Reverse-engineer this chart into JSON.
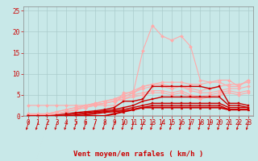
{
  "xlabel": "Vent moyen/en rafales ( km/h )",
  "bg_color": "#c8e8e8",
  "grid_color": "#aacccc",
  "lines": [
    {
      "color": "#ffaaaa",
      "lw": 0.8,
      "marker": "D",
      "markersize": 2.0,
      "x": [
        0,
        1,
        2,
        3,
        4,
        5,
        6,
        7,
        8,
        9,
        10,
        11,
        12,
        13,
        14,
        15,
        16,
        17,
        18,
        19,
        20,
        21,
        22,
        23
      ],
      "y": [
        2.5,
        2.5,
        2.5,
        2.5,
        2.5,
        2.5,
        2.5,
        2.5,
        2.5,
        2.5,
        5.5,
        5.5,
        15.5,
        21.5,
        19.0,
        18.0,
        19.0,
        16.5,
        8.5,
        8.0,
        8.0,
        7.0,
        7.0,
        8.5
      ]
    },
    {
      "color": "#ffaaaa",
      "lw": 0.8,
      "marker": "D",
      "markersize": 2.0,
      "x": [
        0,
        1,
        2,
        3,
        4,
        5,
        6,
        7,
        8,
        9,
        10,
        11,
        12,
        13,
        14,
        15,
        16,
        17,
        18,
        19,
        20,
        21,
        22,
        23
      ],
      "y": [
        0.5,
        0.5,
        0.5,
        0.5,
        1.0,
        1.5,
        2.0,
        2.5,
        3.0,
        3.5,
        4.5,
        5.5,
        7.0,
        7.5,
        8.0,
        8.0,
        8.0,
        7.5,
        7.5,
        8.0,
        8.5,
        8.5,
        7.0,
        8.5
      ]
    },
    {
      "color": "#ffaaaa",
      "lw": 0.8,
      "marker": "D",
      "markersize": 2.0,
      "x": [
        0,
        1,
        2,
        3,
        4,
        5,
        6,
        7,
        8,
        9,
        10,
        11,
        12,
        13,
        14,
        15,
        16,
        17,
        18,
        19,
        20,
        21,
        22,
        23
      ],
      "y": [
        0.3,
        0.3,
        0.5,
        1.0,
        1.5,
        2.0,
        2.5,
        3.0,
        3.5,
        4.0,
        5.0,
        6.0,
        7.0,
        7.5,
        7.5,
        7.0,
        7.0,
        6.5,
        6.0,
        6.5,
        7.0,
        7.5,
        7.5,
        8.0
      ]
    },
    {
      "color": "#ffaaaa",
      "lw": 0.8,
      "marker": "D",
      "markersize": 2.0,
      "x": [
        0,
        1,
        2,
        3,
        4,
        5,
        6,
        7,
        8,
        9,
        10,
        11,
        12,
        13,
        14,
        15,
        16,
        17,
        18,
        19,
        20,
        21,
        22,
        23
      ],
      "y": [
        0.2,
        0.2,
        0.3,
        0.5,
        1.0,
        1.5,
        2.5,
        3.0,
        3.5,
        4.0,
        4.5,
        5.5,
        6.5,
        7.0,
        7.0,
        6.5,
        7.0,
        6.0,
        5.5,
        5.5,
        6.0,
        6.5,
        6.5,
        7.0
      ]
    },
    {
      "color": "#ffaaaa",
      "lw": 0.8,
      "marker": "D",
      "markersize": 2.0,
      "x": [
        0,
        1,
        2,
        3,
        4,
        5,
        6,
        7,
        8,
        9,
        10,
        11,
        12,
        13,
        14,
        15,
        16,
        17,
        18,
        19,
        20,
        21,
        22,
        23
      ],
      "y": [
        0.2,
        0.2,
        0.5,
        1.0,
        1.5,
        2.0,
        2.5,
        2.8,
        3.0,
        3.5,
        4.0,
        5.0,
        5.5,
        6.0,
        6.0,
        5.5,
        6.0,
        5.0,
        4.5,
        5.0,
        5.5,
        6.0,
        5.5,
        6.0
      ]
    },
    {
      "color": "#ffaaaa",
      "lw": 0.8,
      "marker": "D",
      "markersize": 2.0,
      "x": [
        0,
        1,
        2,
        3,
        4,
        5,
        6,
        7,
        8,
        9,
        10,
        11,
        12,
        13,
        14,
        15,
        16,
        17,
        18,
        19,
        20,
        21,
        22,
        23
      ],
      "y": [
        0.0,
        0.0,
        0.2,
        0.5,
        1.0,
        1.5,
        2.0,
        2.5,
        3.0,
        3.5,
        4.0,
        4.5,
        5.0,
        5.5,
        5.5,
        5.0,
        5.5,
        4.5,
        4.0,
        4.5,
        5.0,
        5.5,
        5.0,
        5.5
      ]
    },
    {
      "color": "#cc0000",
      "lw": 1.0,
      "marker": "s",
      "markersize": 2.0,
      "x": [
        0,
        1,
        2,
        3,
        4,
        5,
        6,
        7,
        8,
        9,
        10,
        11,
        12,
        13,
        14,
        15,
        16,
        17,
        18,
        19,
        20,
        21,
        22,
        23
      ],
      "y": [
        0.0,
        0.0,
        0.0,
        0.2,
        0.5,
        0.8,
        1.0,
        1.2,
        1.5,
        2.0,
        3.5,
        3.5,
        4.0,
        7.0,
        7.0,
        7.0,
        7.0,
        7.0,
        7.0,
        6.5,
        7.0,
        3.0,
        3.0,
        2.5
      ]
    },
    {
      "color": "#cc0000",
      "lw": 1.0,
      "marker": "s",
      "markersize": 2.0,
      "x": [
        0,
        1,
        2,
        3,
        4,
        5,
        6,
        7,
        8,
        9,
        10,
        11,
        12,
        13,
        14,
        15,
        16,
        17,
        18,
        19,
        20,
        21,
        22,
        23
      ],
      "y": [
        0.0,
        0.0,
        0.0,
        0.0,
        0.2,
        0.5,
        0.8,
        1.0,
        1.2,
        1.5,
        2.0,
        2.5,
        3.5,
        4.0,
        4.5,
        4.5,
        4.5,
        4.5,
        4.5,
        4.5,
        4.5,
        2.5,
        2.5,
        2.0
      ]
    },
    {
      "color": "#cc0000",
      "lw": 1.0,
      "marker": "s",
      "markersize": 2.0,
      "x": [
        0,
        1,
        2,
        3,
        4,
        5,
        6,
        7,
        8,
        9,
        10,
        11,
        12,
        13,
        14,
        15,
        16,
        17,
        18,
        19,
        20,
        21,
        22,
        23
      ],
      "y": [
        0.0,
        0.0,
        0.0,
        0.0,
        0.0,
        0.2,
        0.5,
        0.8,
        1.0,
        1.2,
        1.5,
        2.0,
        2.5,
        3.0,
        3.0,
        3.0,
        3.0,
        3.0,
        3.0,
        3.0,
        3.0,
        2.0,
        2.0,
        2.0
      ]
    },
    {
      "color": "#cc0000",
      "lw": 1.0,
      "marker": "s",
      "markersize": 2.0,
      "x": [
        0,
        1,
        2,
        3,
        4,
        5,
        6,
        7,
        8,
        9,
        10,
        11,
        12,
        13,
        14,
        15,
        16,
        17,
        18,
        19,
        20,
        21,
        22,
        23
      ],
      "y": [
        0.0,
        0.0,
        0.0,
        0.0,
        0.0,
        0.0,
        0.2,
        0.5,
        0.8,
        1.0,
        1.2,
        1.5,
        2.0,
        2.5,
        2.5,
        2.5,
        2.5,
        2.5,
        2.5,
        2.5,
        2.5,
        1.5,
        1.5,
        1.5
      ]
    },
    {
      "color": "#cc0000",
      "lw": 1.5,
      "marker": "^",
      "markersize": 2.0,
      "x": [
        0,
        1,
        2,
        3,
        4,
        5,
        6,
        7,
        8,
        9,
        10,
        11,
        12,
        13,
        14,
        15,
        16,
        17,
        18,
        19,
        20,
        21,
        22,
        23
      ],
      "y": [
        0.0,
        0.0,
        0.0,
        0.0,
        0.0,
        0.0,
        0.0,
        0.0,
        0.0,
        0.5,
        1.0,
        1.5,
        2.0,
        2.0,
        2.0,
        2.0,
        2.0,
        2.0,
        2.0,
        2.0,
        2.0,
        1.5,
        1.5,
        1.5
      ]
    }
  ],
  "x_ticks": [
    0,
    1,
    2,
    3,
    4,
    5,
    6,
    7,
    8,
    9,
    10,
    11,
    12,
    13,
    14,
    15,
    16,
    17,
    18,
    19,
    20,
    21,
    22,
    23
  ],
  "y_ticks": [
    0,
    5,
    10,
    15,
    20,
    25
  ],
  "axis_color": "#cc0000",
  "tick_label_color": "#cc0000",
  "xlabel_color": "#cc0000",
  "xlabel_fontsize": 6.5,
  "tick_fontsize": 5.5,
  "arrow_color": "#cc0000"
}
